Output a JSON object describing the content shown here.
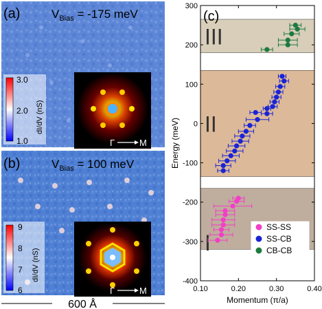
{
  "left_panels": {
    "a": {
      "panel_label": "(a)",
      "bias_prefix": "V",
      "bias_sub": "Bias",
      "bias_value": " = -175 meV",
      "colorbar": {
        "ticks": [
          "3.0",
          "2.0",
          "1.0"
        ],
        "label": "dI/dV (nS)",
        "colors": [
          "#ff0000",
          "#ffffff",
          "#0000ff"
        ]
      },
      "fft_axis": {
        "left": "Γ",
        "right": "M"
      }
    },
    "b": {
      "panel_label": "(b)",
      "bias_prefix": "V",
      "bias_sub": "Bias",
      "bias_value": " = 100 meV",
      "colorbar": {
        "ticks": [
          "9",
          "8",
          "7",
          "6"
        ],
        "label": "dI/dV (nS)",
        "colors": [
          "#ff0000",
          "#ffffff",
          "#0000ff"
        ]
      },
      "fft_axis": {
        "left": "Γ",
        "right": "M"
      }
    },
    "scale_bar": "600 Å"
  },
  "chart_data": {
    "type": "scatter",
    "panel_label": "(c)",
    "xlabel": "Momentum (π/a)",
    "ylabel": "Energy (meV)",
    "xlim": [
      0.1,
      0.4
    ],
    "ylim": [
      -400,
      300
    ],
    "xticks": [
      "0.10",
      "0.20",
      "0.30",
      "0.40"
    ],
    "xtick_values": [
      0.1,
      0.2,
      0.3,
      0.4
    ],
    "yticks": [
      "300",
      "200",
      "100",
      "0",
      "-100",
      "-200",
      "-300",
      "-400"
    ],
    "ytick_values": [
      300,
      200,
      100,
      0,
      -100,
      -200,
      -300,
      -400
    ],
    "regions": [
      {
        "label": "III",
        "y_min": 180,
        "y_max": 265,
        "color": "#d8ceba"
      },
      {
        "label": "II",
        "y_min": -135,
        "y_max": 135,
        "color": "#dcb998"
      },
      {
        "label": "I",
        "y_min": -320,
        "y_max": -165,
        "color": "#bfae9d"
      }
    ],
    "legend_position": "bottom-right",
    "series": [
      {
        "name": "SS-SS",
        "color": "#f23fc7",
        "points": [
          {
            "x": 0.2,
            "y": -190,
            "xerr": 0.015
          },
          {
            "x": 0.195,
            "y": -198,
            "xerr": 0.02
          },
          {
            "x": 0.185,
            "y": -210,
            "xerr": 0.05
          },
          {
            "x": 0.165,
            "y": -222,
            "xerr": 0.025
          },
          {
            "x": 0.165,
            "y": -232,
            "xerr": 0.025
          },
          {
            "x": 0.16,
            "y": -245,
            "xerr": 0.03
          },
          {
            "x": 0.16,
            "y": -258,
            "xerr": 0.03
          },
          {
            "x": 0.155,
            "y": -270,
            "xerr": 0.02
          },
          {
            "x": 0.155,
            "y": -283,
            "xerr": 0.03
          },
          {
            "x": 0.145,
            "y": -297,
            "xerr": 0.025
          }
        ]
      },
      {
        "name": "SS-CB",
        "color": "#1a24d6",
        "points": [
          {
            "x": 0.315,
            "y": 120,
            "xerr": 0.01
          },
          {
            "x": 0.32,
            "y": 108,
            "xerr": 0.012
          },
          {
            "x": 0.31,
            "y": 94,
            "xerr": 0.012
          },
          {
            "x": 0.305,
            "y": 80,
            "xerr": 0.012
          },
          {
            "x": 0.3,
            "y": 67,
            "xerr": 0.012
          },
          {
            "x": 0.295,
            "y": 55,
            "xerr": 0.012
          },
          {
            "x": 0.29,
            "y": 43,
            "xerr": 0.012
          },
          {
            "x": 0.275,
            "y": 38,
            "xerr": 0.01
          },
          {
            "x": 0.275,
            "y": 25,
            "xerr": 0.015
          },
          {
            "x": 0.245,
            "y": 28,
            "xerr": 0.015
          },
          {
            "x": 0.25,
            "y": 10,
            "xerr": 0.03
          },
          {
            "x": 0.23,
            "y": -5,
            "xerr": 0.015
          },
          {
            "x": 0.22,
            "y": -20,
            "xerr": 0.02
          },
          {
            "x": 0.21,
            "y": -32,
            "xerr": 0.02
          },
          {
            "x": 0.205,
            "y": -45,
            "xerr": 0.022
          },
          {
            "x": 0.195,
            "y": -57,
            "xerr": 0.022
          },
          {
            "x": 0.19,
            "y": -70,
            "xerr": 0.022
          },
          {
            "x": 0.18,
            "y": -82,
            "xerr": 0.022
          },
          {
            "x": 0.17,
            "y": -95,
            "xerr": 0.022
          },
          {
            "x": 0.16,
            "y": -107,
            "xerr": 0.02
          },
          {
            "x": 0.16,
            "y": -120,
            "xerr": 0.015
          }
        ]
      },
      {
        "name": "CB-CB",
        "color": "#1d7a3e",
        "points": [
          {
            "x": 0.35,
            "y": 250,
            "xerr": 0.015
          },
          {
            "x": 0.355,
            "y": 240,
            "xerr": 0.02
          },
          {
            "x": 0.34,
            "y": 228,
            "xerr": 0.02
          },
          {
            "x": 0.33,
            "y": 212,
            "xerr": 0.025
          },
          {
            "x": 0.33,
            "y": 200,
            "xerr": 0.025
          },
          {
            "x": 0.275,
            "y": 188,
            "xerr": 0.015
          }
        ]
      }
    ]
  }
}
